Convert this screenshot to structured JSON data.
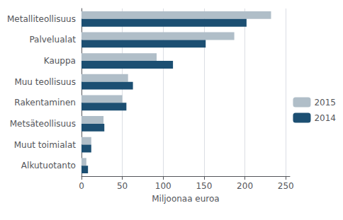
{
  "chart_data": {
    "type": "bar",
    "orientation": "horizontal",
    "categories": [
      "Metalliteollisuus",
      "Palvelualat",
      "Kauppa",
      "Muu teollisuus",
      "Rakentaminen",
      "Metsäteollisuus",
      "Muut toimialat",
      "Alkutuotanto"
    ],
    "series": [
      {
        "name": "2015",
        "color": "#b0bec8",
        "values": [
          232,
          187,
          92,
          57,
          50,
          27,
          12,
          6
        ]
      },
      {
        "name": "2014",
        "color": "#1c4f72",
        "values": [
          202,
          152,
          112,
          63,
          55,
          28,
          12,
          8
        ]
      }
    ],
    "xlabel": "Miljoonaa euroa",
    "xlim": [
      0,
      255
    ],
    "xticks": [
      0,
      50,
      100,
      150,
      200,
      250
    ],
    "grid": true,
    "legend": "right"
  }
}
